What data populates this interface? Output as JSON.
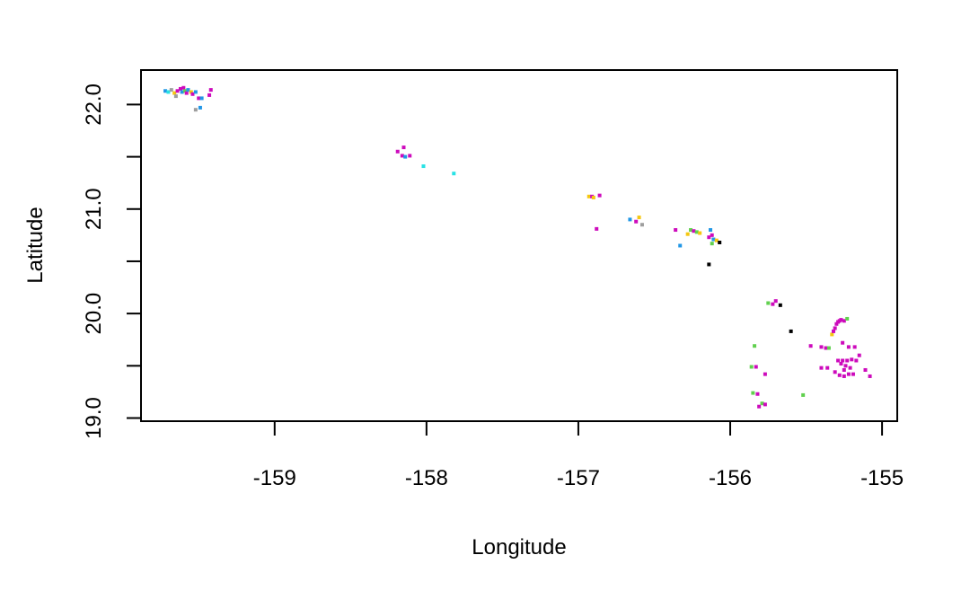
{
  "chart_data": {
    "type": "scatter",
    "title": "",
    "xlabel": "Longitude",
    "ylabel": "Latitude",
    "xlim": [
      -159.88,
      -154.9
    ],
    "ylim": [
      18.97,
      22.33
    ],
    "x_ticks": [
      -159,
      -158,
      -157,
      -156,
      -155
    ],
    "x_tick_labels": [
      "-159",
      "-158",
      "-157",
      "-156",
      "-155"
    ],
    "y_ticks": [
      19.0,
      19.5,
      20.0,
      20.5,
      21.0,
      21.5,
      22.0
    ],
    "y_tick_labels": [
      "19.0",
      "",
      "20.0",
      "",
      "21.0",
      "",
      "22.0"
    ],
    "grid": false,
    "legend": "none",
    "points": [
      {
        "x": -159.72,
        "y": 22.13,
        "color": "#2297e6"
      },
      {
        "x": -159.7,
        "y": 22.12,
        "color": "#28e2e5"
      },
      {
        "x": -159.68,
        "y": 22.14,
        "color": "#9e9e9e"
      },
      {
        "x": -159.66,
        "y": 22.11,
        "color": "#f5c710"
      },
      {
        "x": -159.65,
        "y": 22.08,
        "color": "#9e9e9e"
      },
      {
        "x": -159.64,
        "y": 22.13,
        "color": "#cd0bbc"
      },
      {
        "x": -159.62,
        "y": 22.15,
        "color": "#cd0bbc"
      },
      {
        "x": -159.61,
        "y": 22.12,
        "color": "#2297e6"
      },
      {
        "x": -159.6,
        "y": 22.16,
        "color": "#cd0bbc"
      },
      {
        "x": -159.59,
        "y": 22.13,
        "color": "#61d04f"
      },
      {
        "x": -159.58,
        "y": 22.11,
        "color": "#cd0bbc"
      },
      {
        "x": -159.57,
        "y": 22.14,
        "color": "#2297e6"
      },
      {
        "x": -159.55,
        "y": 22.12,
        "color": "#f5c710"
      },
      {
        "x": -159.54,
        "y": 22.1,
        "color": "#cd0bbc"
      },
      {
        "x": -159.52,
        "y": 22.12,
        "color": "#2297e6"
      },
      {
        "x": -159.5,
        "y": 22.06,
        "color": "#cd0bbc"
      },
      {
        "x": -159.48,
        "y": 22.06,
        "color": "#2297e6"
      },
      {
        "x": -159.52,
        "y": 21.95,
        "color": "#9e9e9e"
      },
      {
        "x": -159.49,
        "y": 21.97,
        "color": "#2297e6"
      },
      {
        "x": -159.43,
        "y": 22.09,
        "color": "#cd0bbc"
      },
      {
        "x": -159.42,
        "y": 22.14,
        "color": "#cd0bbc"
      },
      {
        "x": -158.19,
        "y": 21.55,
        "color": "#cd0bbc"
      },
      {
        "x": -158.16,
        "y": 21.51,
        "color": "#cd0bbc"
      },
      {
        "x": -158.15,
        "y": 21.59,
        "color": "#cd0bbc"
      },
      {
        "x": -158.14,
        "y": 21.5,
        "color": "#2297e6"
      },
      {
        "x": -158.11,
        "y": 21.51,
        "color": "#cd0bbc"
      },
      {
        "x": -158.02,
        "y": 21.41,
        "color": "#28e2e5"
      },
      {
        "x": -157.82,
        "y": 21.34,
        "color": "#28e2e5"
      },
      {
        "x": -156.93,
        "y": 21.12,
        "color": "#f5c710"
      },
      {
        "x": -156.91,
        "y": 21.12,
        "color": "#cd0bbc"
      },
      {
        "x": -156.9,
        "y": 21.11,
        "color": "#f5c710"
      },
      {
        "x": -156.86,
        "y": 21.13,
        "color": "#cd0bbc"
      },
      {
        "x": -156.88,
        "y": 20.81,
        "color": "#cd0bbc"
      },
      {
        "x": -156.66,
        "y": 20.9,
        "color": "#2297e6"
      },
      {
        "x": -156.62,
        "y": 20.88,
        "color": "#cd0bbc"
      },
      {
        "x": -156.6,
        "y": 20.92,
        "color": "#f5c710"
      },
      {
        "x": -156.58,
        "y": 20.85,
        "color": "#9e9e9e"
      },
      {
        "x": -156.36,
        "y": 20.8,
        "color": "#cd0bbc"
      },
      {
        "x": -156.33,
        "y": 20.65,
        "color": "#2297e6"
      },
      {
        "x": -156.28,
        "y": 20.76,
        "color": "#f5c710"
      },
      {
        "x": -156.26,
        "y": 20.8,
        "color": "#61d04f"
      },
      {
        "x": -156.24,
        "y": 20.79,
        "color": "#cd0bbc"
      },
      {
        "x": -156.22,
        "y": 20.78,
        "color": "#61d04f"
      },
      {
        "x": -156.2,
        "y": 20.77,
        "color": "#f5c710"
      },
      {
        "x": -156.13,
        "y": 20.8,
        "color": "#2297e6"
      },
      {
        "x": -156.12,
        "y": 20.75,
        "color": "#cd0bbc"
      },
      {
        "x": -156.14,
        "y": 20.73,
        "color": "#cd0bbc"
      },
      {
        "x": -156.11,
        "y": 20.71,
        "color": "#2297e6"
      },
      {
        "x": -156.09,
        "y": 20.7,
        "color": "#f5c710"
      },
      {
        "x": -156.12,
        "y": 20.67,
        "color": "#61d04f"
      },
      {
        "x": -156.07,
        "y": 20.68,
        "color": "#000000"
      },
      {
        "x": -156.14,
        "y": 20.47,
        "color": "#000000"
      },
      {
        "x": -155.75,
        "y": 20.1,
        "color": "#61d04f"
      },
      {
        "x": -155.72,
        "y": 20.09,
        "color": "#cd0bbc"
      },
      {
        "x": -155.7,
        "y": 20.12,
        "color": "#cd0bbc"
      },
      {
        "x": -155.67,
        "y": 20.08,
        "color": "#000000"
      },
      {
        "x": -155.6,
        "y": 19.83,
        "color": "#000000"
      },
      {
        "x": -155.84,
        "y": 19.69,
        "color": "#61d04f"
      },
      {
        "x": -155.86,
        "y": 19.49,
        "color": "#61d04f"
      },
      {
        "x": -155.83,
        "y": 19.49,
        "color": "#cd0bbc"
      },
      {
        "x": -155.77,
        "y": 19.42,
        "color": "#cd0bbc"
      },
      {
        "x": -155.85,
        "y": 19.24,
        "color": "#61d04f"
      },
      {
        "x": -155.82,
        "y": 19.23,
        "color": "#cd0bbc"
      },
      {
        "x": -155.79,
        "y": 19.14,
        "color": "#61d04f"
      },
      {
        "x": -155.81,
        "y": 19.11,
        "color": "#cd0bbc"
      },
      {
        "x": -155.77,
        "y": 19.13,
        "color": "#cd0bbc"
      },
      {
        "x": -155.52,
        "y": 19.22,
        "color": "#61d04f"
      },
      {
        "x": -155.47,
        "y": 19.69,
        "color": "#cd0bbc"
      },
      {
        "x": -155.4,
        "y": 19.68,
        "color": "#cd0bbc"
      },
      {
        "x": -155.37,
        "y": 19.67,
        "color": "#cd0bbc"
      },
      {
        "x": -155.35,
        "y": 19.67,
        "color": "#61d04f"
      },
      {
        "x": -155.33,
        "y": 19.8,
        "color": "#f5c710"
      },
      {
        "x": -155.32,
        "y": 19.83,
        "color": "#cd0bbc"
      },
      {
        "x": -155.31,
        "y": 19.86,
        "color": "#cd0bbc"
      },
      {
        "x": -155.3,
        "y": 19.9,
        "color": "#cd0bbc"
      },
      {
        "x": -155.29,
        "y": 19.92,
        "color": "#cd0bbc"
      },
      {
        "x": -155.28,
        "y": 19.93,
        "color": "#cd0bbc"
      },
      {
        "x": -155.27,
        "y": 19.94,
        "color": "#cd0bbc"
      },
      {
        "x": -155.25,
        "y": 19.93,
        "color": "#cd0bbc"
      },
      {
        "x": -155.23,
        "y": 19.95,
        "color": "#61d04f"
      },
      {
        "x": -155.26,
        "y": 19.72,
        "color": "#cd0bbc"
      },
      {
        "x": -155.22,
        "y": 19.68,
        "color": "#cd0bbc"
      },
      {
        "x": -155.18,
        "y": 19.68,
        "color": "#cd0bbc"
      },
      {
        "x": -155.15,
        "y": 19.6,
        "color": "#cd0bbc"
      },
      {
        "x": -155.4,
        "y": 19.48,
        "color": "#cd0bbc"
      },
      {
        "x": -155.36,
        "y": 19.48,
        "color": "#cd0bbc"
      },
      {
        "x": -155.31,
        "y": 19.44,
        "color": "#cd0bbc"
      },
      {
        "x": -155.29,
        "y": 19.55,
        "color": "#cd0bbc"
      },
      {
        "x": -155.27,
        "y": 19.52,
        "color": "#cd0bbc"
      },
      {
        "x": -155.26,
        "y": 19.55,
        "color": "#cd0bbc"
      },
      {
        "x": -155.25,
        "y": 19.46,
        "color": "#cd0bbc"
      },
      {
        "x": -155.24,
        "y": 19.5,
        "color": "#cd0bbc"
      },
      {
        "x": -155.23,
        "y": 19.55,
        "color": "#cd0bbc"
      },
      {
        "x": -155.22,
        "y": 19.42,
        "color": "#cd0bbc"
      },
      {
        "x": -155.21,
        "y": 19.48,
        "color": "#cd0bbc"
      },
      {
        "x": -155.2,
        "y": 19.56,
        "color": "#cd0bbc"
      },
      {
        "x": -155.19,
        "y": 19.42,
        "color": "#cd0bbc"
      },
      {
        "x": -155.17,
        "y": 19.55,
        "color": "#cd0bbc"
      },
      {
        "x": -155.28,
        "y": 19.41,
        "color": "#cd0bbc"
      },
      {
        "x": -155.25,
        "y": 19.4,
        "color": "#cd0bbc"
      },
      {
        "x": -155.11,
        "y": 19.46,
        "color": "#cd0bbc"
      },
      {
        "x": -155.08,
        "y": 19.4,
        "color": "#cd0bbc"
      }
    ]
  }
}
